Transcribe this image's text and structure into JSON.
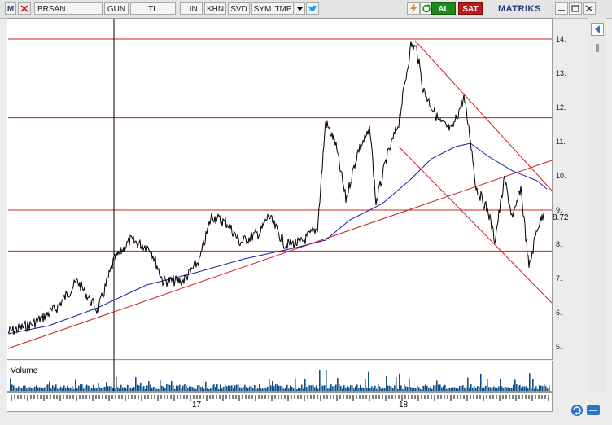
{
  "toolbar": {
    "logo": "M",
    "symbol": "BRSAN",
    "period": "GUN",
    "currency": "TL",
    "scale": "LIN",
    "khn": "KHN",
    "svd": "SVD",
    "sym": "SYM",
    "tmp": "TMP",
    "buy": "AL",
    "sell": "SAT",
    "brand": "MATRIKS"
  },
  "price_axis": {
    "labels": [
      "14.",
      "13.",
      "12.",
      "11.",
      "10.",
      "9.",
      "8.",
      "7.",
      "6.",
      "5."
    ],
    "last_price": "8.72"
  },
  "volume": {
    "label": "Volume"
  },
  "time_axis": {
    "labels": [
      "17",
      "18"
    ]
  },
  "colors": {
    "price_line": "#000000",
    "moving_average": "#1a1aa8",
    "trend_lines": "#cc1f1f",
    "volume_bars": "#0f4f8a",
    "buy": "#1e8a1e",
    "sell": "#c31818"
  },
  "icons": {
    "twitter": "twitter-icon",
    "lightning": "lightning-icon",
    "refresh": "refresh-icon",
    "minimize": "minimize-icon",
    "maximize": "maximize-icon",
    "close": "close-icon",
    "back": "back-arrow-icon"
  }
}
